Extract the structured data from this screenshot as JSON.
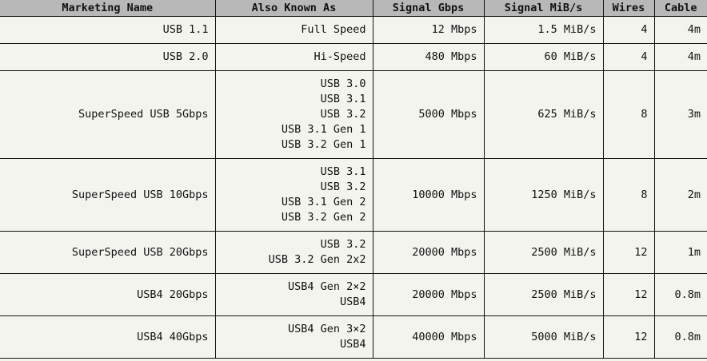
{
  "table": {
    "headers": [
      "Marketing Name",
      "Also Known As",
      "Signal Gbps",
      "Signal MiB/s",
      "Wires",
      "Cable"
    ],
    "rows": [
      {
        "name": "USB 1.1",
        "aka": [
          "Full Speed"
        ],
        "gbps": "12 Mbps",
        "mibs": "1.5 MiB/s",
        "wires": "4",
        "cable": "4m"
      },
      {
        "name": "USB 2.0",
        "aka": [
          "Hi-Speed"
        ],
        "gbps": "480 Mbps",
        "mibs": "60 MiB/s",
        "wires": "4",
        "cable": "4m"
      },
      {
        "name": "SuperSpeed USB 5Gbps",
        "aka": [
          "USB 3.0",
          "USB 3.1",
          "USB 3.2",
          "USB 3.1 Gen 1",
          "USB 3.2 Gen 1"
        ],
        "gbps": "5000 Mbps",
        "mibs": "625 MiB/s",
        "wires": "8",
        "cable": "3m"
      },
      {
        "name": "SuperSpeed USB 10Gbps",
        "aka": [
          "USB 3.1",
          "USB 3.2",
          "USB 3.1 Gen 2",
          "USB 3.2 Gen 2"
        ],
        "gbps": "10000 Mbps",
        "mibs": "1250 MiB/s",
        "wires": "8",
        "cable": "2m"
      },
      {
        "name": "SuperSpeed USB 20Gbps",
        "aka": [
          "USB 3.2",
          "USB 3.2 Gen 2x2"
        ],
        "gbps": "20000 Mbps",
        "mibs": "2500 MiB/s",
        "wires": "12",
        "cable": "1m"
      },
      {
        "name": "USB4 20Gbps",
        "aka": [
          "USB4 Gen 2×2",
          "USB4"
        ],
        "gbps": "20000 Mbps",
        "mibs": "2500 MiB/s",
        "wires": "12",
        "cable": "0.8m"
      },
      {
        "name": "USB4 40Gbps",
        "aka": [
          "USB4 Gen 3×2",
          "USB4"
        ],
        "gbps": "40000 Mbps",
        "mibs": "5000 MiB/s",
        "wires": "12",
        "cable": "0.8m"
      }
    ]
  }
}
